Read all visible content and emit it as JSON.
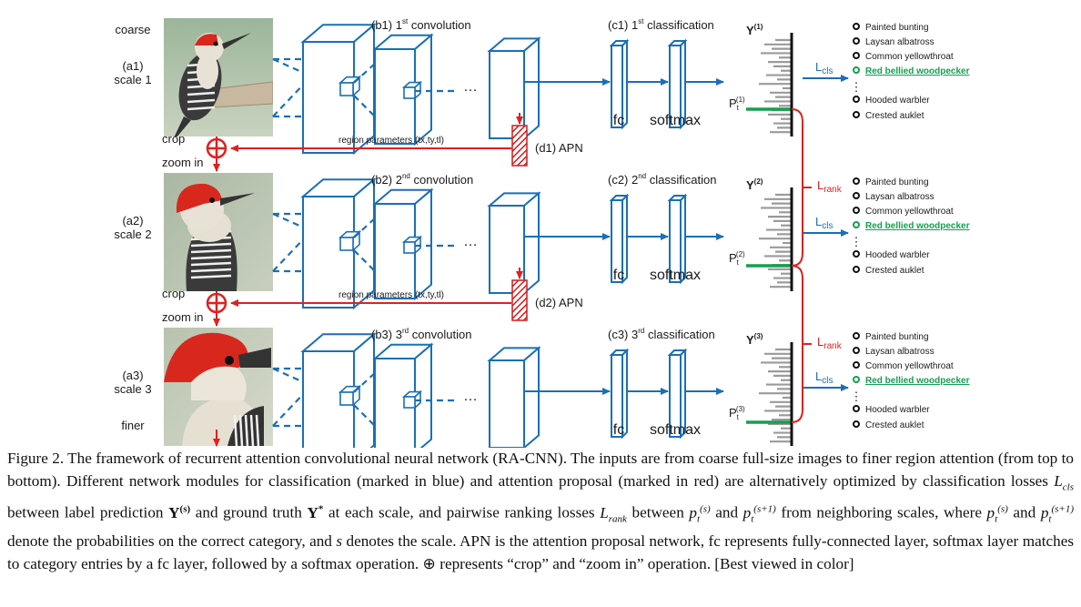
{
  "scales": [
    {
      "top_label": "coarse",
      "scale_id": "(a1)",
      "scale_name": "scale 1",
      "conv_title": "(b1) 1st convolution",
      "cls_title": "(c1) 1st classification",
      "y_label": "Y(1)",
      "p_label": "Pt(1)",
      "bottom_label": ""
    },
    {
      "top_label": "",
      "scale_id": "(a2)",
      "scale_name": "scale 2",
      "conv_title": "(b2) 2nd convolution",
      "cls_title": "(c2) 2nd classification",
      "y_label": "Y(2)",
      "p_label": "Pt(2)",
      "bottom_label": ""
    },
    {
      "top_label": "",
      "scale_id": "(a3)",
      "scale_name": "scale 3",
      "conv_title": "(b3) 3rd convolution",
      "cls_title": "(c3) 3rd classification",
      "y_label": "Y(3)",
      "p_label": "Pt(3)",
      "bottom_label": "finer"
    }
  ],
  "common": {
    "fc": "fc",
    "softmax": "softmax",
    "lcls": "Lcls",
    "lrank": "Lrank",
    "crop": "crop",
    "zoom_in": "zoom in",
    "region_params": "region parameters (tx,ty,tl)",
    "apn1": "(d1) APN",
    "apn2": "(d2) APN",
    "dots": "…"
  },
  "classes": [
    "Painted bunting",
    "Laysan albatross",
    "Common yellowthroat",
    "Red bellied woodpecker",
    "Hooded warbler",
    "Crested auklet"
  ],
  "colors": {
    "blue": "#1a6fb5",
    "red": "#e02020",
    "green": "#14a050"
  },
  "caption": "Figure 2. The framework of recurrent attention convolutional neural network (RA-CNN). The inputs are from coarse full-size images to finer region attention (from top to bottom). Different network modules for classification (marked in blue) and attention proposal (marked in red) are alternatively optimized by classification losses L_cls between label prediction Y^(s) and ground truth Y* at each scale, and pairwise ranking losses L_rank between p_t^(s) and p_t^(s+1) from neighboring scales, where p_t^(s) and p_t^(s+1) denote the probabilities on the correct category, and s denotes the scale. APN is the attention proposal network, fc represents fully-connected layer, softmax layer matches to category entries by a fc layer, followed by a softmax operation. ⊕ represents “crop” and “zoom in” operation. [Best viewed in color]",
  "caption_parts": {
    "p1": "Figure 2. The framework of recurrent attention convolutional neural network (RA-CNN). The inputs are from coarse full-size images to finer region attention (from top to bottom). Different network modules for classification (marked in blue) and attention proposal (marked in red) are alternatively optimized by classification losses ",
    "p2": " between label prediction ",
    "p3": " and ground truth ",
    "p4": " at each scale, and pairwise ranking losses ",
    "p5": " between ",
    "p6": " and ",
    "p7": " from neighboring scales, where ",
    "p8": " and ",
    "p9": " denote the probabilities on the correct category, and ",
    "p10": " denotes the scale. APN is the attention proposal network, fc represents fully-connected layer, softmax layer matches to category entries by a fc layer, followed by a softmax operation. ⊕ represents “crop” and “zoom in” operation. [Best viewed in color]"
  }
}
